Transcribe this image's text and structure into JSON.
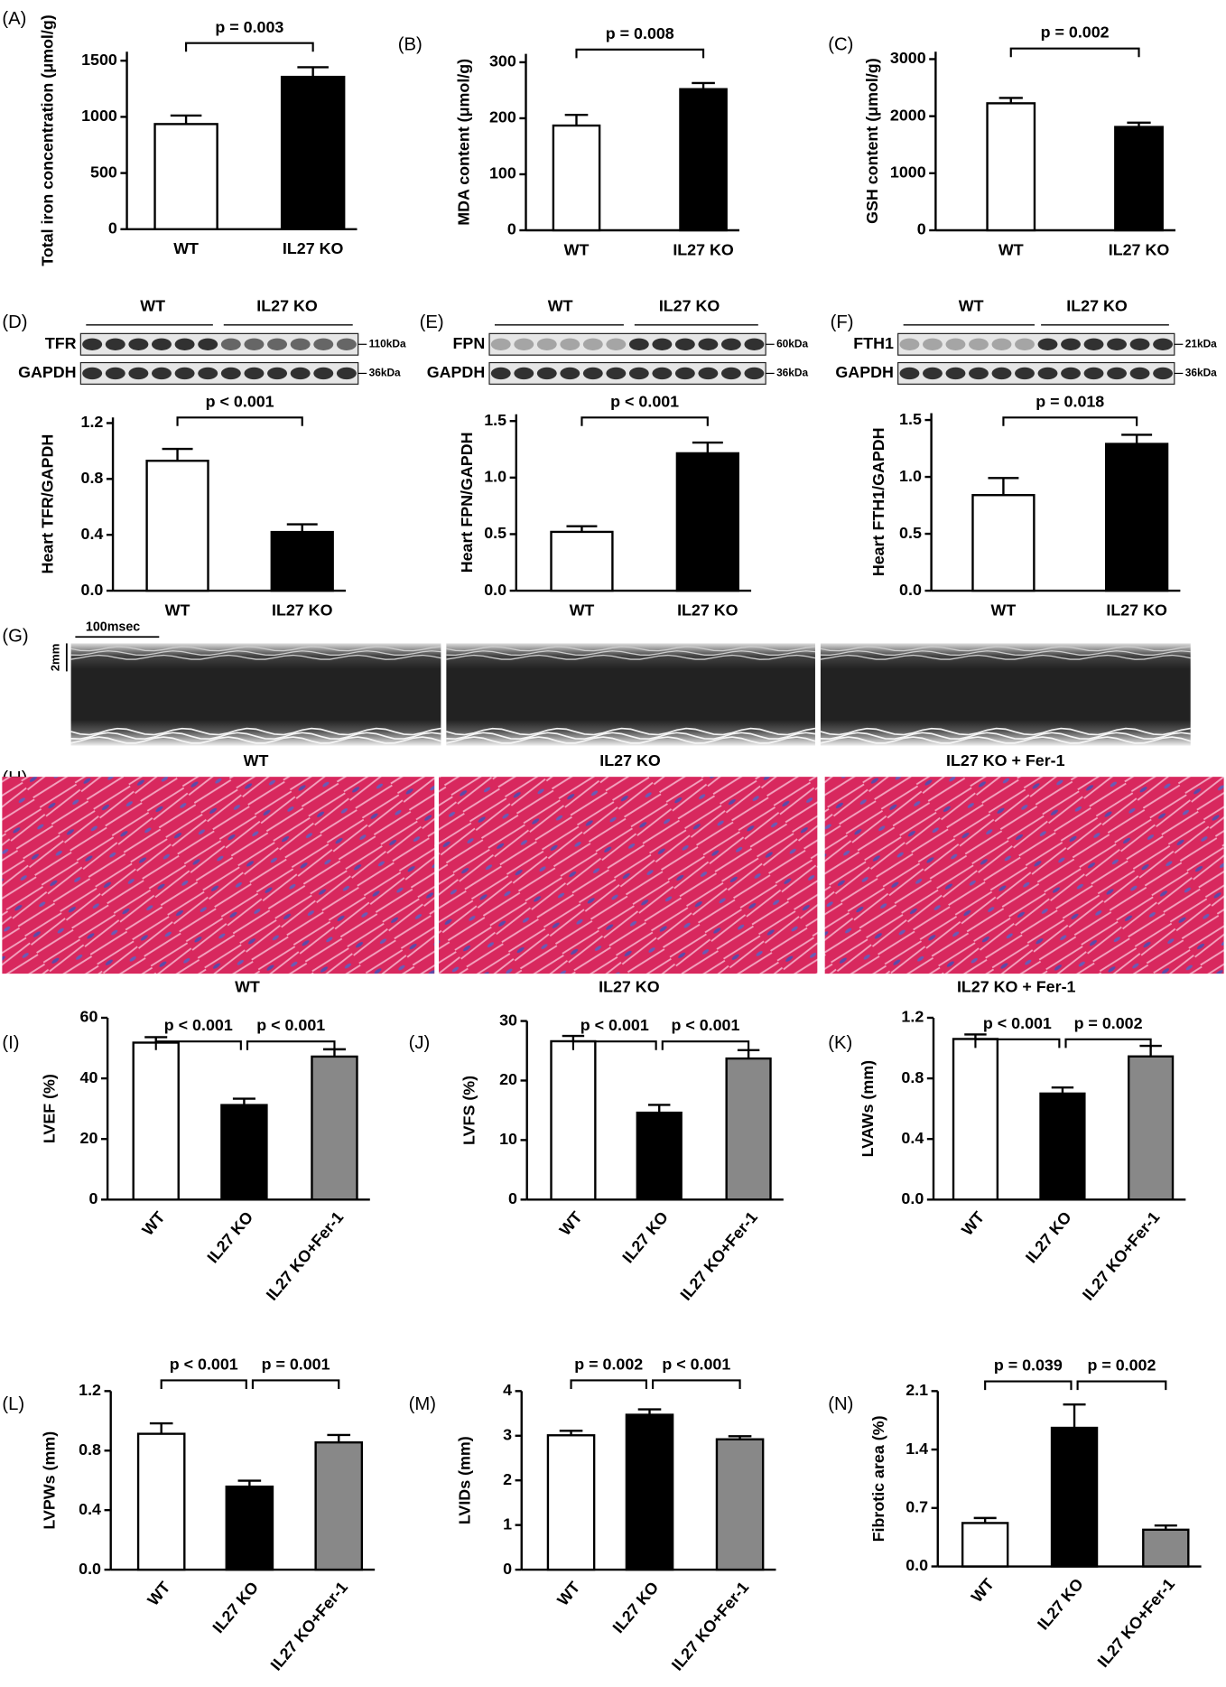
{
  "chart_data": [
    {
      "type": "bar",
      "panel": "(A)",
      "ylabel": "Total iron concentration (μmol/g)",
      "categories": [
        "WT",
        "IL27 KO"
      ],
      "values": [
        936,
        1356
      ],
      "errors": [
        76,
        86
      ],
      "colors": [
        "#ffffff",
        "#000000"
      ],
      "ylim": [
        0,
        1580
      ],
      "yticks": [
        0,
        500,
        1000,
        1500
      ],
      "comparisons": [
        "p = 0.003"
      ]
    },
    {
      "type": "bar",
      "panel": "(B)",
      "ylabel": "MDA content (μmol/g)",
      "categories": [
        "WT",
        "IL27 KO"
      ],
      "values": [
        187,
        252
      ],
      "errors": [
        19,
        11
      ],
      "colors": [
        "#ffffff",
        "#000000"
      ],
      "ylim": [
        0,
        315
      ],
      "yticks": [
        0,
        100,
        200,
        300
      ],
      "comparisons": [
        "p = 0.008"
      ]
    },
    {
      "type": "bar",
      "panel": "(C)",
      "ylabel": "GSH content (μmol/g)",
      "categories": [
        "WT",
        "IL27 KO"
      ],
      "values": [
        2226,
        1811
      ],
      "errors": [
        94,
        76
      ],
      "colors": [
        "#ffffff",
        "#000000"
      ],
      "ylim": [
        0,
        3130
      ],
      "yticks": [
        0,
        1000,
        2000,
        3000
      ],
      "comparisons": [
        "p = 0.002"
      ]
    },
    {
      "type": "bar",
      "panel": "(D)",
      "ylabel": "Heart TFR/GAPDH",
      "categories": [
        "WT",
        "IL27 KO"
      ],
      "values": [
        0.93,
        0.42
      ],
      "errors": [
        0.085,
        0.055
      ],
      "colors": [
        "#ffffff",
        "#000000"
      ],
      "ylim": [
        0,
        1.24
      ],
      "yticks": [
        {
          "value": 0,
          "label": "0.0"
        },
        0.4,
        0.8,
        1.2
      ],
      "comparisons": [
        "p < 0.001"
      ]
    },
    {
      "type": "bar",
      "panel": "(E)",
      "ylabel": "Heart FPN/GAPDH",
      "categories": [
        "WT",
        "IL27 KO"
      ],
      "values": [
        0.52,
        1.215
      ],
      "errors": [
        0.05,
        0.095
      ],
      "colors": [
        "#ffffff",
        "#000000"
      ],
      "ylim": [
        0,
        1.56
      ],
      "yticks": [
        {
          "value": 0,
          "label": "0.0"
        },
        0.5,
        {
          "value": 1,
          "label": "1.0"
        },
        1.5
      ],
      "comparisons": [
        "p < 0.001"
      ]
    },
    {
      "type": "bar",
      "panel": "(F)",
      "ylabel": "Heart FTH1/GAPDH",
      "categories": [
        "WT",
        "IL27 KO"
      ],
      "values": [
        0.84,
        1.29
      ],
      "errors": [
        0.15,
        0.08
      ],
      "colors": [
        "#ffffff",
        "#000000"
      ],
      "ylim": [
        0,
        1.56
      ],
      "yticks": [
        {
          "value": 0,
          "label": "0.0"
        },
        0.5,
        {
          "value": 1,
          "label": "1.0"
        },
        1.5
      ],
      "comparisons": [
        "p = 0.018"
      ]
    },
    {
      "type": "bar",
      "panel": "(I)",
      "ylabel": "LVEF (%)",
      "categories": [
        "WT",
        "IL27 KO",
        "IL27 KO+Fer-1"
      ],
      "values": [
        51.8,
        31.2,
        47.2
      ],
      "errors": [
        1.8,
        2.1,
        2.4
      ],
      "colors": [
        "#ffffff",
        "#000000",
        "#888888"
      ],
      "ylim": [
        0,
        60
      ],
      "yticks": [
        0,
        20,
        40,
        60
      ],
      "comparisons": [
        "p < 0.001",
        "p < 0.001"
      ]
    },
    {
      "type": "bar",
      "panel": "(J)",
      "ylabel": "LVFS (%)",
      "categories": [
        "WT",
        "IL27 KO",
        "IL27 KO+Fer-1"
      ],
      "values": [
        26.6,
        14.6,
        23.7
      ],
      "errors": [
        0.9,
        1.3,
        1.4
      ],
      "colors": [
        "#ffffff",
        "#000000",
        "#888888"
      ],
      "ylim": [
        0,
        30
      ],
      "yticks": [
        0,
        10,
        20,
        30
      ],
      "comparisons": [
        "p < 0.001",
        "p < 0.001"
      ]
    },
    {
      "type": "bar",
      "panel": "(K)",
      "ylabel": "LVAWs (mm)",
      "categories": [
        "WT",
        "IL27 KO",
        "IL27 KO+Fer-1"
      ],
      "values": [
        1.06,
        0.7,
        0.945
      ],
      "errors": [
        0.03,
        0.04,
        0.07
      ],
      "colors": [
        "#ffffff",
        "#000000",
        "#888888"
      ],
      "ylim": [
        0,
        1.2
      ],
      "yticks": [
        {
          "value": 0,
          "label": "0.0"
        },
        0.4,
        0.8,
        1.2
      ],
      "comparisons": [
        "p < 0.001",
        "p = 0.002"
      ]
    },
    {
      "type": "bar",
      "panel": "(L)",
      "ylabel": "LVPWs (mm)",
      "categories": [
        "WT",
        "IL27 KO",
        "IL27 KO+Fer-1"
      ],
      "values": [
        0.913,
        0.558,
        0.855
      ],
      "errors": [
        0.07,
        0.04,
        0.05
      ],
      "colors": [
        "#ffffff",
        "#000000",
        "#888888"
      ],
      "ylim": [
        0,
        1.2
      ],
      "yticks": [
        {
          "value": 0,
          "label": "0.0"
        },
        0.4,
        0.8,
        1.2
      ],
      "comparisons": [
        "p < 0.001",
        "p = 0.001"
      ]
    },
    {
      "type": "bar",
      "panel": "(M)",
      "ylabel": "LVIDs (mm)",
      "categories": [
        "WT",
        "IL27 KO",
        "IL27 KO+Fer-1"
      ],
      "values": [
        3.01,
        3.47,
        2.92
      ],
      "errors": [
        0.1,
        0.12,
        0.07
      ],
      "colors": [
        "#ffffff",
        "#000000",
        "#888888"
      ],
      "ylim": [
        0,
        4
      ],
      "yticks": [
        0,
        1,
        2,
        3,
        4
      ],
      "comparisons": [
        "p = 0.002",
        "p < 0.001"
      ]
    },
    {
      "type": "bar",
      "panel": "(N)",
      "ylabel": "Fibrotic area (%)",
      "categories": [
        "WT",
        "IL27 KO",
        "IL27 KO+Fer-1"
      ],
      "values": [
        0.52,
        1.66,
        0.44
      ],
      "errors": [
        0.06,
        0.28,
        0.05
      ],
      "colors": [
        "#ffffff",
        "#000000",
        "#888888"
      ],
      "ylim": [
        0,
        2.1
      ],
      "yticks": [
        {
          "value": 0,
          "label": "0.0"
        },
        0.7,
        1.4,
        2.1
      ],
      "comparisons": [
        "p = 0.039",
        "p = 0.002"
      ]
    }
  ],
  "blots": [
    {
      "groups": [
        "WT",
        "IL27 KO"
      ],
      "rows": [
        {
          "name": "TFR",
          "size": "110kDa"
        },
        {
          "name": "GAPDH",
          "size": "36kDa"
        }
      ]
    },
    {
      "groups": [
        "WT",
        "IL27 KO"
      ],
      "rows": [
        {
          "name": "FPN",
          "size": "60kDa"
        },
        {
          "name": "GAPDH",
          "size": "36kDa"
        }
      ]
    },
    {
      "groups": [
        "WT",
        "IL27 KO"
      ],
      "rows": [
        {
          "name": "FTH1",
          "size": "21kDa"
        },
        {
          "name": "GAPDH",
          "size": "36kDa"
        }
      ]
    }
  ],
  "echo": {
    "panel": "(G)",
    "time_scale": "100msec",
    "depth_scale": "2mm",
    "labels": [
      "WT",
      "IL27 KO",
      "IL27 KO + Fer-1"
    ]
  },
  "histology": {
    "panel": "(H)",
    "labels": [
      "WT",
      "IL27 KO",
      "IL27 KO + Fer-1"
    ]
  }
}
